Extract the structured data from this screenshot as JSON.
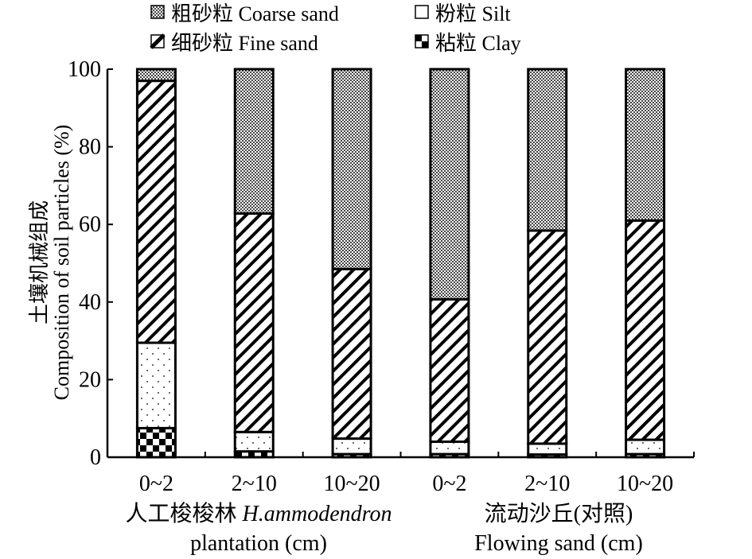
{
  "chart_data": {
    "type": "bar",
    "stacked": true,
    "ylim": [
      0,
      100
    ],
    "yticks": [
      0,
      20,
      40,
      60,
      80,
      100
    ],
    "ylabel_cn": "土壤机械组成",
    "ylabel_en": "Composition of soil particles (%)",
    "categories": [
      "0~2",
      "2~10",
      "10~20",
      "0~2",
      "2~10",
      "10~20"
    ],
    "groups": [
      {
        "label_cn": "人工梭梭林",
        "label_italic": "H.ammodendron",
        "label_en": "plantation (cm)"
      },
      {
        "label_cn": "流动沙丘(对照)",
        "label_en": "Flowing sand (cm)"
      }
    ],
    "legend_position": "top-center",
    "series": [
      {
        "key": "clay",
        "name_cn": "粘粒",
        "name_en": "Clay",
        "values": [
          7.5,
          1.5,
          0.8,
          0.8,
          0.7,
          0.8
        ]
      },
      {
        "key": "silt",
        "name_cn": "粉粒",
        "name_en": "Silt",
        "values": [
          22,
          5,
          4,
          3.2,
          2.8,
          3.7
        ]
      },
      {
        "key": "fine",
        "name_cn": "细砂粒",
        "name_en": "Fine sand",
        "values": [
          67.5,
          56.3,
          43.7,
          36.7,
          54.9,
          56.5
        ]
      },
      {
        "key": "coarse",
        "name_cn": "粗砂粒",
        "name_en": "Coarse sand",
        "values": [
          3,
          37.2,
          51.5,
          59.3,
          41.6,
          39
        ]
      }
    ]
  }
}
